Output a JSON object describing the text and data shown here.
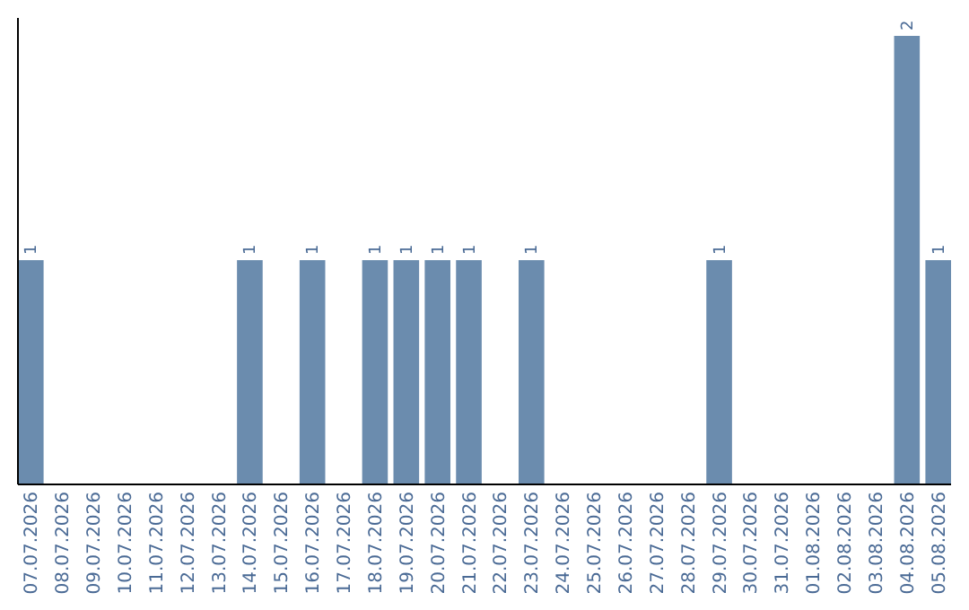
{
  "chart_data": {
    "type": "bar",
    "categories": [
      "07.07.2026",
      "08.07.2026",
      "09.07.2026",
      "10.07.2026",
      "11.07.2026",
      "12.07.2026",
      "13.07.2026",
      "14.07.2026",
      "15.07.2026",
      "16.07.2026",
      "17.07.2026",
      "18.07.2026",
      "19.07.2026",
      "20.07.2026",
      "21.07.2026",
      "22.07.2026",
      "23.07.2026",
      "24.07.2026",
      "25.07.2026",
      "26.07.2026",
      "27.07.2026",
      "28.07.2026",
      "29.07.2026",
      "30.07.2026",
      "31.07.2026",
      "01.08.2026",
      "02.08.2026",
      "03.08.2026",
      "04.08.2026",
      "05.08.2026"
    ],
    "values": [
      1,
      0,
      0,
      0,
      0,
      0,
      0,
      1,
      0,
      1,
      0,
      1,
      1,
      1,
      1,
      0,
      1,
      0,
      0,
      0,
      0,
      0,
      1,
      0,
      0,
      0,
      0,
      0,
      2,
      1
    ],
    "value_labels": [
      "1",
      null,
      null,
      null,
      null,
      null,
      null,
      "1",
      null,
      "1",
      null,
      "1",
      "1",
      "1",
      "1",
      null,
      "1",
      null,
      null,
      null,
      null,
      null,
      "1",
      null,
      null,
      null,
      null,
      null,
      "2",
      "1"
    ],
    "color": "#6b8cae"
  }
}
